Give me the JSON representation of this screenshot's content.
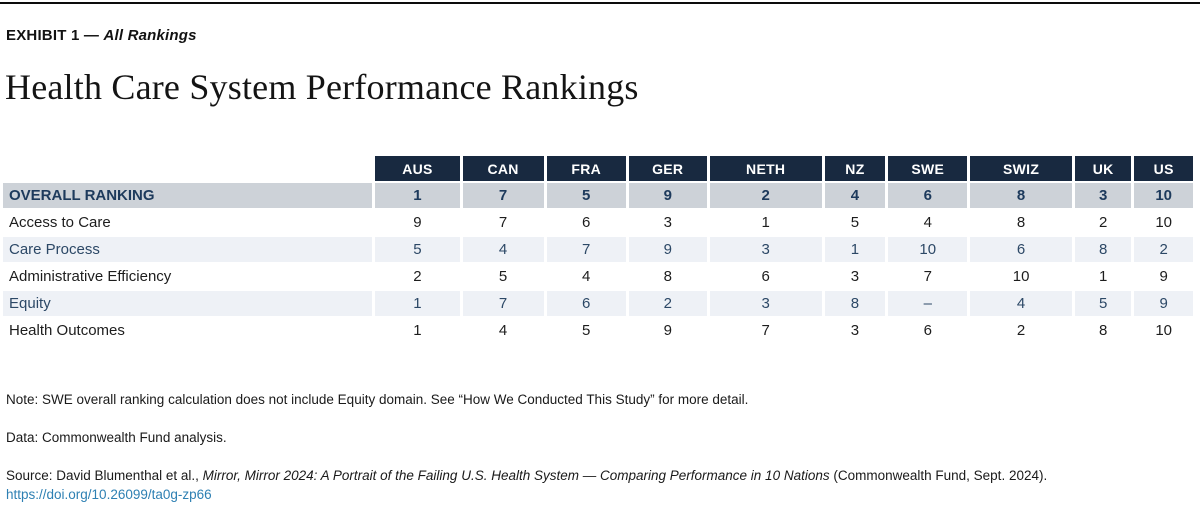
{
  "header": {
    "exhibit_prefix": "EXHIBIT 1 —",
    "exhibit_title": "All Rankings",
    "page_title": "Health Care System Performance Rankings"
  },
  "chart_data": {
    "type": "table",
    "title": "Health Care System Performance Rankings",
    "columns": [
      "AUS",
      "CAN",
      "FRA",
      "GER",
      "NETH",
      "NZ",
      "SWE",
      "SWIZ",
      "UK",
      "US"
    ],
    "rows": [
      {
        "label": "OVERALL RANKING",
        "emphasis": true,
        "values": [
          "1",
          "7",
          "5",
          "9",
          "2",
          "4",
          "6",
          "8",
          "3",
          "10"
        ]
      },
      {
        "label": "Access to Care",
        "values": [
          "9",
          "7",
          "6",
          "3",
          "1",
          "5",
          "4",
          "8",
          "2",
          "10"
        ]
      },
      {
        "label": "Care Process",
        "values": [
          "5",
          "4",
          "7",
          "9",
          "3",
          "1",
          "10",
          "6",
          "8",
          "2"
        ]
      },
      {
        "label": "Administrative Efficiency",
        "values": [
          "2",
          "5",
          "4",
          "8",
          "6",
          "3",
          "7",
          "10",
          "1",
          "9"
        ]
      },
      {
        "label": "Equity",
        "values": [
          "1",
          "7",
          "6",
          "2",
          "3",
          "8",
          "–",
          "4",
          "5",
          "9"
        ]
      },
      {
        "label": "Health Outcomes",
        "values": [
          "1",
          "4",
          "5",
          "9",
          "7",
          "3",
          "6",
          "2",
          "8",
          "10"
        ]
      }
    ]
  },
  "footnotes": {
    "note": "Note: SWE overall ranking calculation does not include Equity domain. See “How We Conducted This Study” for more detail.",
    "data_credit": "Data: Commonwealth Fund analysis.",
    "source_prefix": "Source: David Blumenthal et al., ",
    "source_title": "Mirror, Mirror 2024: A Portrait of the Failing U.S. Health System — Comparing Performance in 10 Nations",
    "source_suffix": " (Commonwealth Fund, Sept. 2024).",
    "link": "https://doi.org/10.26099/ta0g-zp66"
  },
  "colors": {
    "top_rule": "#0c0c0c",
    "header_bg": "#182940",
    "header_text": "#ffffff",
    "overall_row_bg": "#cdd2d8",
    "overall_row_text": "#1d3a5c",
    "alt_row_bg": "#eef1f6",
    "alt_row_text": "#2c4866",
    "plain_row_text": "#1d1d1d",
    "link": "#2e80b3"
  }
}
